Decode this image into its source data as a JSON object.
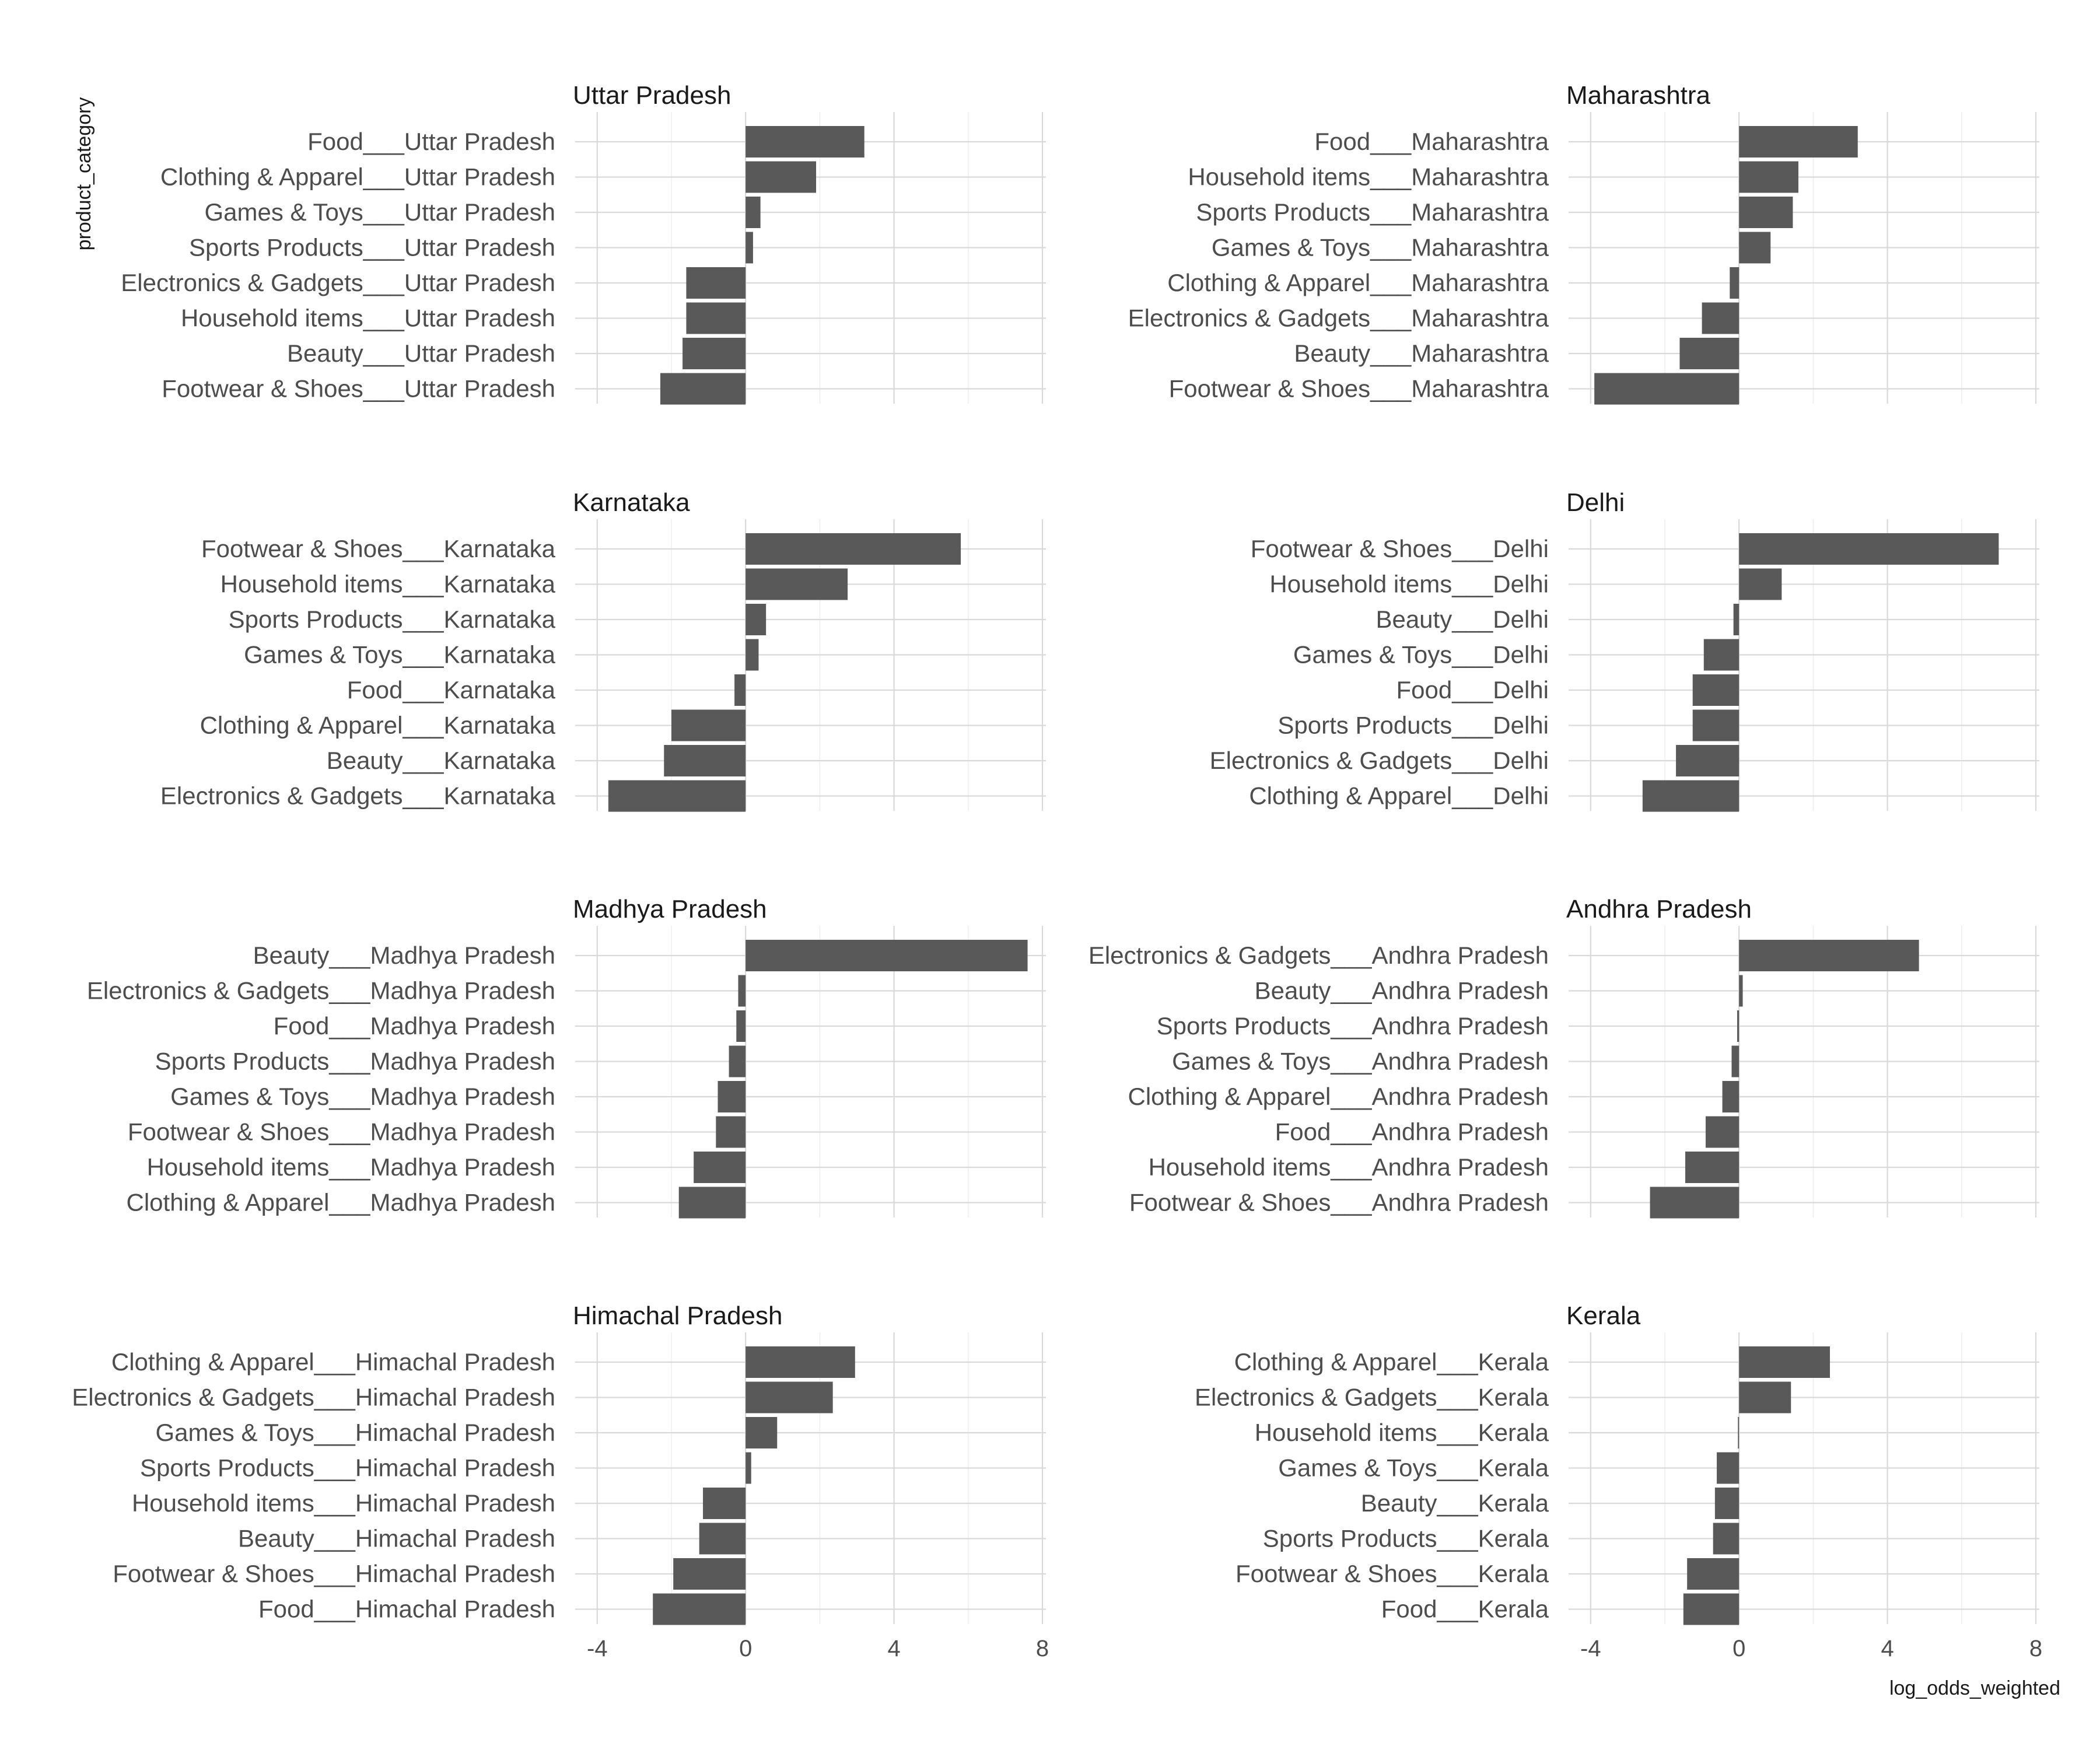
{
  "chart_data": {
    "type": "bar",
    "orientation": "horizontal",
    "layout": "facets 2 columns x 4 rows, free y",
    "xlabel": "log_odds_weighted",
    "ylabel": "product_category",
    "xlim": [
      -4.5,
      8.0
    ],
    "xticks": [
      -4,
      0,
      4,
      8
    ],
    "xtick_labels": [
      "-4",
      "0",
      "4",
      "8"
    ],
    "grid": true,
    "bar_color": "#595959",
    "panels": [
      {
        "title": "Uttar Pradesh",
        "categories": [
          "Food___Uttar Pradesh",
          "Clothing & Apparel___Uttar Pradesh",
          "Games & Toys___Uttar Pradesh",
          "Sports Products___Uttar Pradesh",
          "Electronics & Gadgets___Uttar Pradesh",
          "Household items___Uttar Pradesh",
          "Beauty___Uttar Pradesh",
          "Footwear & Shoes___Uttar Pradesh"
        ],
        "values": [
          3.2,
          1.9,
          0.4,
          0.2,
          -1.6,
          -1.6,
          -1.7,
          -2.3
        ]
      },
      {
        "title": "Maharashtra",
        "categories": [
          "Food___Maharashtra",
          "Household items___Maharashtra",
          "Sports Products___Maharashtra",
          "Games & Toys___Maharashtra",
          "Clothing & Apparel___Maharashtra",
          "Electronics & Gadgets___Maharashtra",
          "Beauty___Maharashtra",
          "Footwear & Shoes___Maharashtra"
        ],
        "values": [
          3.2,
          1.6,
          1.45,
          0.85,
          -0.25,
          -1.0,
          -1.6,
          -3.9
        ]
      },
      {
        "title": "Karnataka",
        "categories": [
          "Footwear & Shoes___Karnataka",
          "Household items___Karnataka",
          "Sports Products___Karnataka",
          "Games & Toys___Karnataka",
          "Food___Karnataka",
          "Clothing & Apparel___Karnataka",
          "Beauty___Karnataka",
          "Electronics & Gadgets___Karnataka"
        ],
        "values": [
          5.8,
          2.75,
          0.55,
          0.35,
          -0.3,
          -2.0,
          -2.2,
          -3.7
        ]
      },
      {
        "title": "Delhi",
        "categories": [
          "Footwear & Shoes___Delhi",
          "Household items___Delhi",
          "Beauty___Delhi",
          "Games & Toys___Delhi",
          "Food___Delhi",
          "Sports Products___Delhi",
          "Electronics & Gadgets___Delhi",
          "Clothing & Apparel___Delhi"
        ],
        "values": [
          7.0,
          1.15,
          -0.15,
          -0.95,
          -1.25,
          -1.25,
          -1.7,
          -2.6
        ]
      },
      {
        "title": "Madhya Pradesh",
        "categories": [
          "Beauty___Madhya Pradesh",
          "Electronics & Gadgets___Madhya Pradesh",
          "Food___Madhya Pradesh",
          "Sports Products___Madhya Pradesh",
          "Games & Toys___Madhya Pradesh",
          "Footwear & Shoes___Madhya Pradesh",
          "Household items___Madhya Pradesh",
          "Clothing & Apparel___Madhya Pradesh"
        ],
        "values": [
          7.6,
          -0.2,
          -0.25,
          -0.45,
          -0.75,
          -0.8,
          -1.4,
          -1.8
        ]
      },
      {
        "title": "Andhra Pradesh",
        "categories": [
          "Electronics & Gadgets___Andhra Pradesh",
          "Beauty___Andhra Pradesh",
          "Sports Products___Andhra Pradesh",
          "Games & Toys___Andhra Pradesh",
          "Clothing & Apparel___Andhra Pradesh",
          "Food___Andhra Pradesh",
          "Household items___Andhra Pradesh",
          "Footwear & Shoes___Andhra Pradesh"
        ],
        "values": [
          4.85,
          0.1,
          -0.05,
          -0.2,
          -0.45,
          -0.9,
          -1.45,
          -2.4
        ]
      },
      {
        "title": "Himachal Pradesh",
        "categories": [
          "Clothing & Apparel___Himachal Pradesh",
          "Electronics & Gadgets___Himachal Pradesh",
          "Games & Toys___Himachal Pradesh",
          "Sports Products___Himachal Pradesh",
          "Household items___Himachal Pradesh",
          "Beauty___Himachal Pradesh",
          "Footwear & Shoes___Himachal Pradesh",
          "Food___Himachal Pradesh"
        ],
        "values": [
          2.95,
          2.35,
          0.85,
          0.15,
          -1.15,
          -1.25,
          -1.95,
          -2.5
        ]
      },
      {
        "title": "Kerala",
        "categories": [
          "Clothing & Apparel___Kerala",
          "Electronics & Gadgets___Kerala",
          "Household items___Kerala",
          "Games & Toys___Kerala",
          "Beauty___Kerala",
          "Sports Products___Kerala",
          "Footwear & Shoes___Kerala",
          "Food___Kerala"
        ],
        "values": [
          2.45,
          1.4,
          -0.03,
          -0.6,
          -0.65,
          -0.7,
          -1.4,
          -1.5
        ]
      }
    ]
  }
}
